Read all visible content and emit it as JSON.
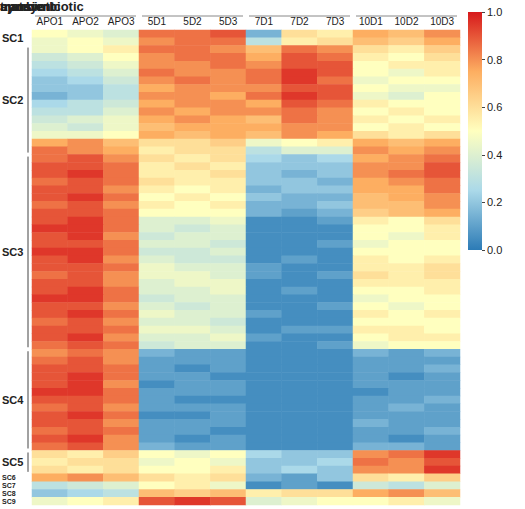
{
  "chart_data": {
    "type": "heatmap",
    "tick_labels": "x",
    "groups": [
      {
        "label": "aposymbiotic",
        "columns": [
          "APO1",
          "APO2",
          "APO3"
        ]
      },
      {
        "label": "transient",
        "columns": [
          "5D1",
          "5D2",
          "5D3"
        ]
      },
      {
        "label": "symbiotic",
        "columns": [
          "7D1",
          "7D2",
          "7D3"
        ]
      },
      {
        "label": "mature",
        "columns": [
          "10D1",
          "10D2",
          "10D3"
        ]
      }
    ],
    "clusters": [
      {
        "label": "SC1",
        "rows": [
          [
            0.5,
            0.45,
            0.4,
            0.85,
            0.85,
            0.9,
            0.15,
            0.6,
            0.55,
            0.75,
            0.7,
            0.8
          ],
          [
            0.45,
            0.5,
            0.45,
            0.8,
            0.85,
            0.85,
            0.3,
            0.55,
            0.6,
            0.7,
            0.65,
            0.75
          ]
        ]
      },
      {
        "label": "SC2",
        "rows": [
          [
            0.45,
            0.5,
            0.55,
            0.85,
            0.85,
            0.8,
            0.7,
            0.85,
            0.8,
            0.6,
            0.55,
            0.65
          ],
          [
            0.35,
            0.4,
            0.5,
            0.8,
            0.85,
            0.85,
            0.75,
            0.9,
            0.85,
            0.55,
            0.5,
            0.6
          ],
          [
            0.3,
            0.35,
            0.45,
            0.8,
            0.8,
            0.85,
            0.8,
            0.9,
            0.9,
            0.5,
            0.55,
            0.55
          ],
          [
            0.25,
            0.3,
            0.4,
            0.85,
            0.8,
            0.8,
            0.85,
            0.95,
            0.9,
            0.5,
            0.45,
            0.55
          ],
          [
            0.2,
            0.25,
            0.35,
            0.8,
            0.85,
            0.8,
            0.85,
            0.95,
            0.85,
            0.45,
            0.5,
            0.5
          ],
          [
            0.2,
            0.2,
            0.3,
            0.75,
            0.8,
            0.8,
            0.8,
            0.9,
            0.9,
            0.5,
            0.45,
            0.45
          ],
          [
            0.15,
            0.2,
            0.3,
            0.8,
            0.8,
            0.75,
            0.85,
            0.95,
            0.9,
            0.45,
            0.4,
            0.5
          ],
          [
            0.25,
            0.3,
            0.35,
            0.75,
            0.8,
            0.8,
            0.75,
            0.9,
            0.85,
            0.55,
            0.5,
            0.5
          ],
          [
            0.3,
            0.3,
            0.4,
            0.8,
            0.75,
            0.8,
            0.8,
            0.85,
            0.8,
            0.5,
            0.55,
            0.5
          ],
          [
            0.35,
            0.4,
            0.45,
            0.75,
            0.8,
            0.75,
            0.7,
            0.85,
            0.8,
            0.55,
            0.5,
            0.55
          ],
          [
            0.4,
            0.35,
            0.45,
            0.7,
            0.75,
            0.75,
            0.75,
            0.8,
            0.8,
            0.5,
            0.55,
            0.5
          ],
          [
            0.45,
            0.45,
            0.5,
            0.75,
            0.7,
            0.75,
            0.7,
            0.8,
            0.75,
            0.6,
            0.55,
            0.6
          ],
          [
            0.75,
            0.8,
            0.7,
            0.6,
            0.6,
            0.65,
            0.45,
            0.5,
            0.55,
            0.75,
            0.7,
            0.75
          ],
          [
            0.85,
            0.8,
            0.75,
            0.55,
            0.6,
            0.6,
            0.3,
            0.4,
            0.4,
            0.8,
            0.75,
            0.8
          ]
        ]
      },
      {
        "label": "SC3",
        "rows": [
          [
            0.85,
            0.9,
            0.8,
            0.6,
            0.55,
            0.6,
            0.25,
            0.2,
            0.25,
            0.75,
            0.8,
            0.85
          ],
          [
            0.9,
            0.9,
            0.85,
            0.55,
            0.6,
            0.55,
            0.2,
            0.2,
            0.2,
            0.8,
            0.8,
            0.9
          ],
          [
            0.9,
            0.95,
            0.85,
            0.55,
            0.55,
            0.6,
            0.2,
            0.15,
            0.2,
            0.8,
            0.85,
            0.9
          ],
          [
            0.85,
            0.9,
            0.85,
            0.6,
            0.55,
            0.55,
            0.2,
            0.2,
            0.15,
            0.75,
            0.8,
            0.85
          ],
          [
            0.9,
            0.9,
            0.8,
            0.55,
            0.5,
            0.55,
            0.15,
            0.2,
            0.2,
            0.75,
            0.75,
            0.85
          ],
          [
            0.9,
            0.95,
            0.85,
            0.5,
            0.55,
            0.5,
            0.2,
            0.15,
            0.15,
            0.7,
            0.75,
            0.8
          ],
          [
            0.85,
            0.9,
            0.8,
            0.55,
            0.5,
            0.55,
            0.15,
            0.15,
            0.2,
            0.7,
            0.7,
            0.8
          ],
          [
            0.9,
            0.9,
            0.85,
            0.5,
            0.5,
            0.5,
            0.15,
            0.1,
            0.15,
            0.65,
            0.7,
            0.75
          ],
          [
            0.9,
            0.95,
            0.85,
            0.4,
            0.4,
            0.45,
            0.05,
            0.05,
            0.1,
            0.55,
            0.5,
            0.6
          ],
          [
            0.95,
            0.95,
            0.85,
            0.4,
            0.35,
            0.4,
            0.05,
            0.05,
            0.05,
            0.5,
            0.5,
            0.55
          ],
          [
            0.9,
            0.95,
            0.8,
            0.35,
            0.4,
            0.4,
            0.05,
            0.05,
            0.05,
            0.5,
            0.45,
            0.55
          ],
          [
            0.9,
            0.9,
            0.85,
            0.4,
            0.4,
            0.35,
            0.05,
            0.05,
            0.1,
            0.45,
            0.5,
            0.5
          ],
          [
            0.95,
            0.95,
            0.85,
            0.35,
            0.35,
            0.4,
            0.05,
            0.05,
            0.05,
            0.5,
            0.5,
            0.5
          ],
          [
            0.9,
            0.95,
            0.8,
            0.4,
            0.35,
            0.35,
            0.05,
            0.1,
            0.05,
            0.55,
            0.5,
            0.55
          ],
          [
            0.9,
            0.9,
            0.85,
            0.45,
            0.4,
            0.4,
            0.1,
            0.05,
            0.05,
            0.55,
            0.55,
            0.6
          ],
          [
            0.85,
            0.9,
            0.8,
            0.45,
            0.45,
            0.4,
            0.1,
            0.05,
            0.1,
            0.6,
            0.55,
            0.6
          ],
          [
            0.9,
            0.9,
            0.8,
            0.4,
            0.45,
            0.45,
            0.05,
            0.05,
            0.05,
            0.55,
            0.55,
            0.55
          ],
          [
            0.9,
            0.95,
            0.85,
            0.4,
            0.4,
            0.45,
            0.05,
            0.1,
            0.05,
            0.5,
            0.5,
            0.55
          ],
          [
            0.95,
            0.95,
            0.85,
            0.35,
            0.4,
            0.4,
            0.05,
            0.05,
            0.05,
            0.45,
            0.5,
            0.5
          ],
          [
            0.9,
            0.9,
            0.8,
            0.4,
            0.35,
            0.4,
            0.05,
            0.05,
            0.1,
            0.5,
            0.45,
            0.5
          ],
          [
            0.9,
            0.95,
            0.85,
            0.45,
            0.4,
            0.4,
            0.1,
            0.05,
            0.05,
            0.55,
            0.5,
            0.55
          ],
          [
            0.85,
            0.9,
            0.8,
            0.4,
            0.4,
            0.35,
            0.05,
            0.05,
            0.05,
            0.5,
            0.5,
            0.5
          ],
          [
            0.9,
            0.9,
            0.85,
            0.45,
            0.45,
            0.4,
            0.05,
            0.1,
            0.1,
            0.55,
            0.55,
            0.5
          ],
          [
            0.9,
            0.95,
            0.8,
            0.4,
            0.4,
            0.45,
            0.1,
            0.05,
            0.05,
            0.5,
            0.55,
            0.55
          ],
          [
            0.85,
            0.9,
            0.85,
            0.35,
            0.4,
            0.4,
            0.05,
            0.05,
            0.1,
            0.45,
            0.5,
            0.5
          ]
        ]
      },
      {
        "label": "SC4",
        "rows": [
          [
            0.8,
            0.85,
            0.8,
            0.15,
            0.1,
            0.1,
            0.05,
            0.05,
            0.05,
            0.15,
            0.1,
            0.15
          ],
          [
            0.85,
            0.9,
            0.8,
            0.1,
            0.1,
            0.1,
            0.05,
            0.05,
            0.05,
            0.1,
            0.1,
            0.1
          ],
          [
            0.9,
            0.9,
            0.85,
            0.1,
            0.05,
            0.1,
            0.05,
            0.05,
            0.05,
            0.1,
            0.1,
            0.15
          ],
          [
            0.9,
            0.95,
            0.85,
            0.1,
            0.1,
            0.05,
            0.05,
            0.05,
            0.05,
            0.1,
            0.05,
            0.1
          ],
          [
            0.9,
            0.95,
            0.8,
            0.05,
            0.1,
            0.1,
            0.05,
            0.05,
            0.05,
            0.1,
            0.1,
            0.1
          ],
          [
            0.95,
            0.95,
            0.85,
            0.1,
            0.1,
            0.1,
            0.05,
            0.05,
            0.05,
            0.05,
            0.1,
            0.1
          ],
          [
            0.9,
            0.9,
            0.85,
            0.1,
            0.05,
            0.05,
            0.05,
            0.05,
            0.05,
            0.1,
            0.1,
            0.15
          ],
          [
            0.85,
            0.9,
            0.8,
            0.1,
            0.1,
            0.1,
            0.05,
            0.05,
            0.05,
            0.1,
            0.15,
            0.1
          ],
          [
            0.9,
            0.95,
            0.85,
            0.05,
            0.05,
            0.1,
            0.05,
            0.05,
            0.05,
            0.1,
            0.1,
            0.1
          ],
          [
            0.9,
            0.9,
            0.8,
            0.1,
            0.1,
            0.1,
            0.05,
            0.05,
            0.05,
            0.15,
            0.1,
            0.1
          ],
          [
            0.85,
            0.9,
            0.85,
            0.1,
            0.1,
            0.05,
            0.05,
            0.05,
            0.05,
            0.1,
            0.1,
            0.15
          ],
          [
            0.9,
            0.95,
            0.8,
            0.1,
            0.05,
            0.1,
            0.05,
            0.05,
            0.05,
            0.1,
            0.05,
            0.1
          ],
          [
            0.85,
            0.9,
            0.8,
            0.15,
            0.1,
            0.1,
            0.05,
            0.05,
            0.05,
            0.15,
            0.15,
            0.1
          ]
        ]
      },
      {
        "label": "SC5",
        "rows": [
          [
            0.6,
            0.55,
            0.65,
            0.5,
            0.45,
            0.5,
            0.25,
            0.2,
            0.2,
            0.8,
            0.85,
            0.95
          ],
          [
            0.55,
            0.6,
            0.6,
            0.45,
            0.5,
            0.45,
            0.2,
            0.2,
            0.25,
            0.85,
            0.8,
            0.9
          ],
          [
            0.6,
            0.55,
            0.6,
            0.5,
            0.5,
            0.55,
            0.2,
            0.25,
            0.2,
            0.8,
            0.8,
            0.95
          ]
        ]
      },
      {
        "label": "SC6",
        "rows": [
          [
            0.75,
            0.8,
            0.7,
            0.6,
            0.55,
            0.6,
            0.15,
            0.1,
            0.2,
            0.6,
            0.55,
            0.65
          ]
        ]
      },
      {
        "label": "SC7",
        "rows": [
          [
            0.3,
            0.35,
            0.4,
            0.5,
            0.55,
            0.45,
            0.05,
            0.1,
            0.05,
            0.35,
            0.3,
            0.4
          ]
        ]
      },
      {
        "label": "SC8",
        "rows": [
          [
            0.2,
            0.25,
            0.3,
            0.7,
            0.65,
            0.7,
            0.55,
            0.6,
            0.6,
            0.75,
            0.8,
            0.7
          ]
        ]
      },
      {
        "label": "SC9",
        "rows": [
          [
            0.45,
            0.5,
            0.55,
            0.9,
            0.95,
            0.9,
            0.4,
            0.45,
            0.5,
            0.5,
            0.55,
            0.45
          ]
        ]
      }
    ],
    "colorbar": {
      "range": [
        0,
        1
      ],
      "ticks": [
        {
          "value": 0,
          "label": "0.0"
        },
        {
          "value": 0.2,
          "label": "0.2"
        },
        {
          "value": 0.4,
          "label": "0.4"
        },
        {
          "value": 0.6,
          "label": "0.6"
        },
        {
          "value": 0.8,
          "label": "0.8"
        },
        {
          "value": 1,
          "label": "1.0"
        }
      ],
      "colors": [
        "#2c7bb6",
        "#abd9e9",
        "#ffffbf",
        "#fdae61",
        "#d7191c"
      ]
    }
  }
}
